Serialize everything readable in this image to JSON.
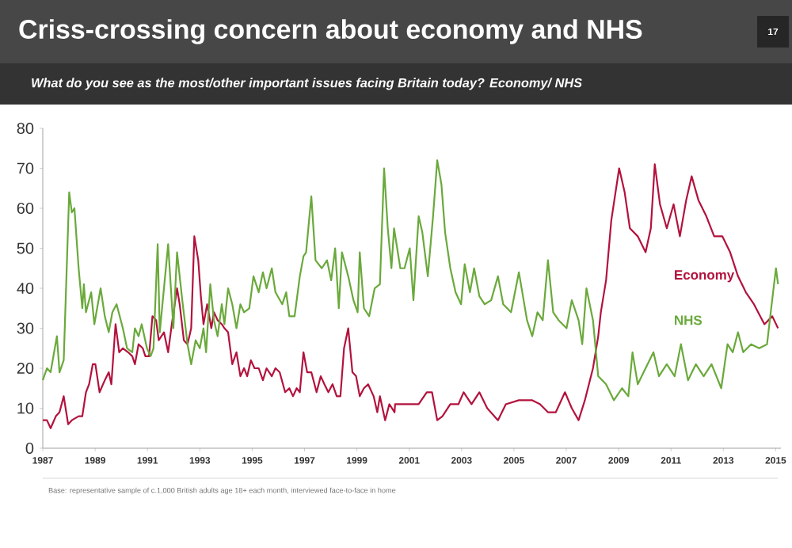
{
  "chart_data": {
    "type": "line",
    "title": "Criss-crossing concern about economy and NHS",
    "subtitle": "What do you see as the most/other important issues facing Britain today? Economy/ NHS",
    "xlim": [
      1987,
      2015.2
    ],
    "xticks": [
      1987,
      1989,
      1991,
      1993,
      1995,
      1997,
      1999,
      2001,
      2003,
      2005,
      2007,
      2009,
      2011,
      2013,
      2015
    ],
    "ylim": [
      0,
      80
    ],
    "yticks": [
      0,
      10,
      20,
      30,
      40,
      50,
      60,
      70,
      80
    ],
    "annotations": [
      "17",
      "Base: representative sample of c.1,000 British adults age 18+ each month, interviewed face-to-face in home"
    ],
    "series": [
      {
        "name": "Economy",
        "color": "#b3123d",
        "x": [
          1987.0,
          1987.16,
          1987.3,
          1987.5,
          1987.64,
          1987.8,
          1987.97,
          1988.11,
          1988.37,
          1988.51,
          1988.65,
          1988.77,
          1988.91,
          1989.01,
          1989.17,
          1989.37,
          1989.52,
          1989.62,
          1989.78,
          1989.92,
          1990.06,
          1990.26,
          1990.42,
          1990.52,
          1990.66,
          1990.82,
          1990.92,
          1991.06,
          1991.19,
          1991.33,
          1991.43,
          1991.63,
          1991.79,
          1991.93,
          1992.13,
          1992.23,
          1992.39,
          1992.53,
          1992.67,
          1992.79,
          1992.94,
          1993.04,
          1993.14,
          1993.28,
          1993.44,
          1993.54,
          1993.68,
          1993.84,
          1993.94,
          1994.08,
          1994.24,
          1994.4,
          1994.55,
          1994.69,
          1994.81,
          1994.95,
          1995.09,
          1995.25,
          1995.41,
          1995.55,
          1995.75,
          1995.89,
          1996.05,
          1996.26,
          1996.42,
          1996.56,
          1996.7,
          1996.82,
          1996.96,
          1997.1,
          1997.26,
          1997.46,
          1997.62,
          1997.76,
          1997.91,
          1998.07,
          1998.23,
          1998.37,
          1998.51,
          1998.67,
          1998.83,
          1998.97,
          1999.11,
          1999.27,
          1999.43,
          1999.64,
          1999.78,
          1999.88,
          2000.08,
          2000.24,
          2000.44,
          2000.46,
          2000.76,
          2001.06,
          2001.36,
          2001.67,
          2001.87,
          2002.07,
          2002.27,
          2002.57,
          2002.88,
          2003.08,
          2003.38,
          2003.68,
          2003.98,
          2004.39,
          2004.69,
          2005.19,
          2005.7,
          2006.0,
          2006.3,
          2006.6,
          2006.95,
          2007.21,
          2007.47,
          2007.71,
          2008.02,
          2008.22,
          2008.32,
          2008.52,
          2008.72,
          2009.02,
          2009.23,
          2009.43,
          2009.73,
          2010.03,
          2010.23,
          2010.38,
          2010.58,
          2010.84,
          2011.1,
          2011.34,
          2011.58,
          2011.79,
          2012.05,
          2012.35,
          2012.65,
          2012.96,
          2013.26,
          2013.56,
          2013.86,
          2014.17,
          2014.57,
          2014.87,
          2015.09
        ],
        "values": [
          7,
          7,
          5,
          8,
          9,
          13,
          6,
          7,
          8,
          8,
          14,
          16,
          21,
          21,
          14,
          17,
          19,
          16,
          31,
          24,
          25,
          24,
          23,
          21,
          26,
          25,
          23,
          23,
          33,
          32,
          27,
          29,
          24,
          31,
          40,
          36,
          27,
          26,
          30,
          53,
          47,
          38,
          31,
          36,
          30,
          34,
          32,
          31,
          30,
          29,
          21,
          24,
          18,
          20,
          18,
          22,
          20,
          20,
          17,
          20,
          18,
          20,
          19,
          14,
          15,
          13,
          15,
          14,
          24,
          19,
          19,
          14,
          18,
          16,
          14,
          16,
          13,
          13,
          25,
          30,
          19,
          18,
          13,
          15,
          16,
          13,
          9,
          13,
          7,
          11,
          9,
          11,
          11,
          11,
          11,
          14,
          14,
          7,
          8,
          11,
          11,
          14,
          11,
          14,
          10,
          7,
          11,
          12,
          12,
          11,
          9,
          9,
          14,
          10,
          7,
          12,
          20,
          28,
          34,
          42,
          57,
          70,
          64,
          55,
          53,
          49,
          55,
          71,
          61,
          55,
          61,
          53,
          62,
          68,
          62,
          58,
          53,
          53,
          49,
          43,
          39,
          36,
          31,
          33,
          30
        ]
      },
      {
        "name": "NHS",
        "color": "#6aa93b",
        "x": [
          1987.0,
          1987.16,
          1987.3,
          1987.54,
          1987.64,
          1987.8,
          1988.01,
          1988.11,
          1988.21,
          1988.37,
          1988.51,
          1988.57,
          1988.65,
          1988.85,
          1988.97,
          1989.21,
          1989.37,
          1989.52,
          1989.66,
          1989.82,
          1990.06,
          1990.22,
          1990.42,
          1990.52,
          1990.66,
          1990.78,
          1990.98,
          1991.12,
          1991.23,
          1991.39,
          1991.47,
          1991.63,
          1991.79,
          1991.99,
          1992.13,
          1992.33,
          1992.53,
          1992.67,
          1992.84,
          1993.0,
          1993.14,
          1993.24,
          1993.4,
          1993.54,
          1993.68,
          1993.84,
          1993.94,
          1994.08,
          1994.24,
          1994.4,
          1994.55,
          1994.69,
          1994.89,
          1995.05,
          1995.25,
          1995.41,
          1995.55,
          1995.75,
          1995.89,
          1996.15,
          1996.3,
          1996.42,
          1996.62,
          1996.82,
          1996.96,
          1997.06,
          1997.26,
          1997.42,
          1997.66,
          1997.86,
          1998.02,
          1998.17,
          1998.31,
          1998.43,
          1998.67,
          1998.87,
          1999.03,
          1999.11,
          1999.27,
          1999.47,
          1999.68,
          1999.88,
          2000.04,
          2000.18,
          2000.32,
          2000.42,
          2000.66,
          2000.82,
          2001.02,
          2001.16,
          2001.36,
          2001.5,
          2001.71,
          2001.91,
          2002.07,
          2002.23,
          2002.37,
          2002.57,
          2002.77,
          2002.98,
          2003.12,
          2003.32,
          2003.48,
          2003.68,
          2003.88,
          2004.13,
          2004.39,
          2004.59,
          2004.89,
          2005.19,
          2005.5,
          2005.7,
          2005.9,
          2006.1,
          2006.3,
          2006.5,
          2006.71,
          2007.01,
          2007.21,
          2007.47,
          2007.61,
          2007.77,
          2008.02,
          2008.22,
          2008.52,
          2008.82,
          2009.13,
          2009.37,
          2009.53,
          2009.73,
          2010.03,
          2010.33,
          2010.54,
          2010.84,
          2011.14,
          2011.38,
          2011.65,
          2011.95,
          2012.25,
          2012.55,
          2012.92,
          2013.16,
          2013.36,
          2013.56,
          2013.76,
          2014.06,
          2014.37,
          2014.67,
          2014.81,
          2015.01,
          2015.09
        ],
        "values": [
          17,
          20,
          19,
          28,
          19,
          22,
          64,
          59,
          60,
          45,
          35,
          41,
          34,
          39,
          31,
          40,
          33,
          29,
          34,
          36,
          30,
          25,
          24,
          30,
          28,
          31,
          25,
          23,
          25,
          51,
          29,
          40,
          51,
          30,
          49,
          37,
          26,
          21,
          27,
          25,
          30,
          24,
          41,
          32,
          28,
          36,
          31,
          40,
          36,
          30,
          36,
          34,
          35,
          43,
          39,
          44,
          40,
          45,
          39,
          36,
          39,
          33,
          33,
          43,
          48,
          49,
          63,
          47,
          45,
          47,
          42,
          50,
          35,
          49,
          43,
          37,
          34,
          49,
          35,
          33,
          40,
          41,
          70,
          55,
          45,
          55,
          45,
          45,
          50,
          37,
          58,
          54,
          43,
          58,
          72,
          66,
          54,
          45,
          39,
          36,
          46,
          39,
          45,
          38,
          36,
          37,
          43,
          36,
          34,
          44,
          32,
          28,
          34,
          32,
          47,
          34,
          32,
          30,
          37,
          32,
          26,
          40,
          32,
          18,
          16,
          12,
          15,
          13,
          24,
          16,
          20,
          24,
          18,
          21,
          18,
          26,
          17,
          21,
          18,
          21,
          15,
          26,
          24,
          29,
          24,
          26,
          25,
          26,
          34,
          45,
          41
        ]
      }
    ]
  }
}
